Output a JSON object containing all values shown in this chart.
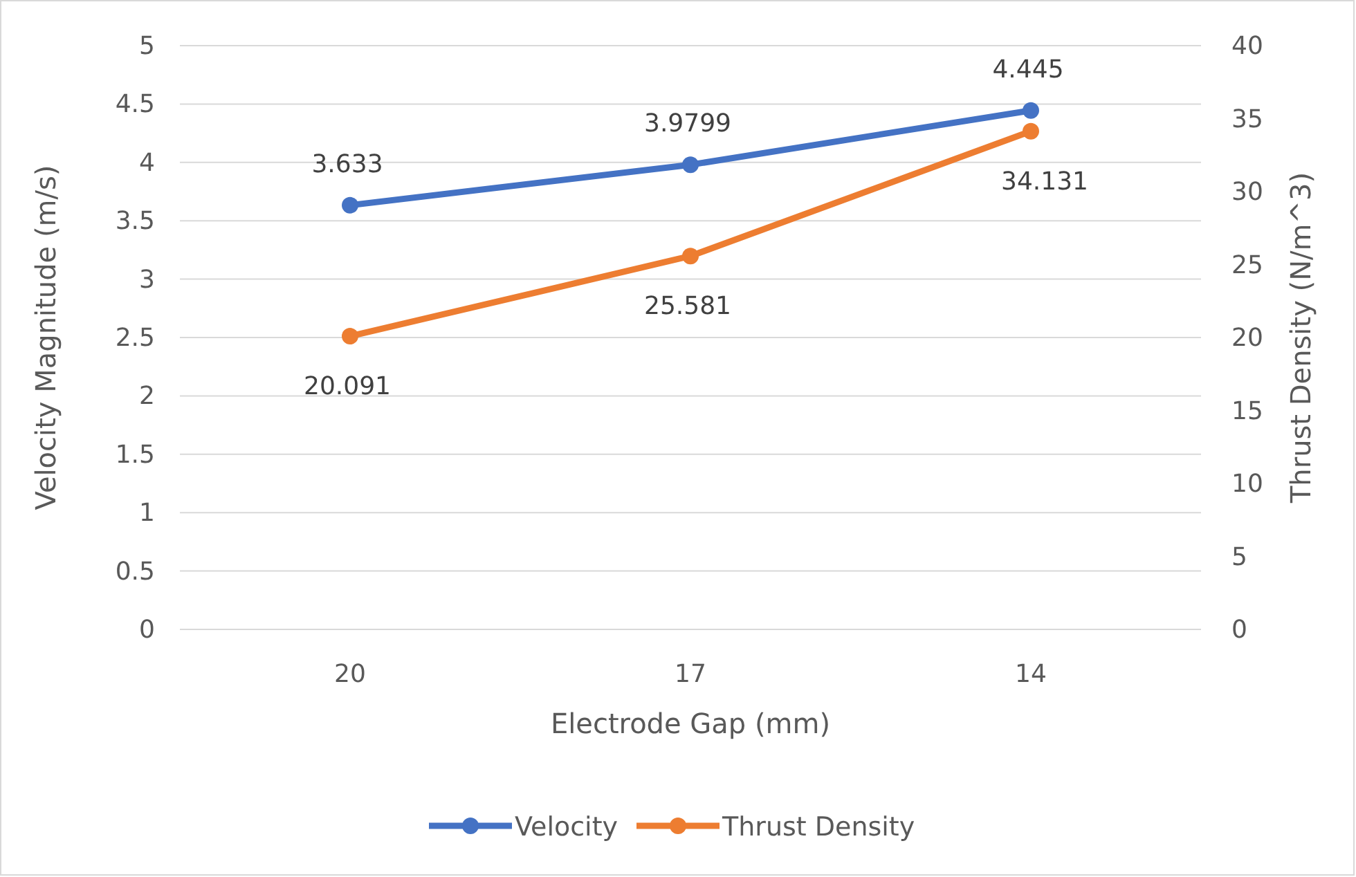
{
  "chart_data": {
    "type": "line",
    "xlabel": "Electrode Gap (mm)",
    "ylabel": "Velocity Magnitude (m/s)",
    "y2label": "Thrust Density (N/m^3)",
    "categories": [
      "20",
      "17",
      "14"
    ],
    "series": [
      {
        "name": "Velocity",
        "color": "#4472c4",
        "values": [
          3.633,
          3.9799,
          4.445
        ]
      },
      {
        "name": "Thrust Density",
        "color": "#ed7d31",
        "values": [
          20.091,
          25.581,
          34.131
        ],
        "axis": "y2"
      }
    ],
    "ylim": [
      0,
      5
    ],
    "yticks": [
      0,
      0.5,
      1,
      1.5,
      2,
      2.5,
      3,
      3.5,
      4,
      4.5,
      5
    ],
    "y2lim": [
      0,
      40
    ],
    "y2ticks": [
      0,
      5,
      10,
      15,
      20,
      25,
      30,
      35,
      40
    ],
    "grid": "y",
    "legend": "bottom",
    "marker": "circle",
    "line_style": "solid",
    "data_labels": true
  }
}
